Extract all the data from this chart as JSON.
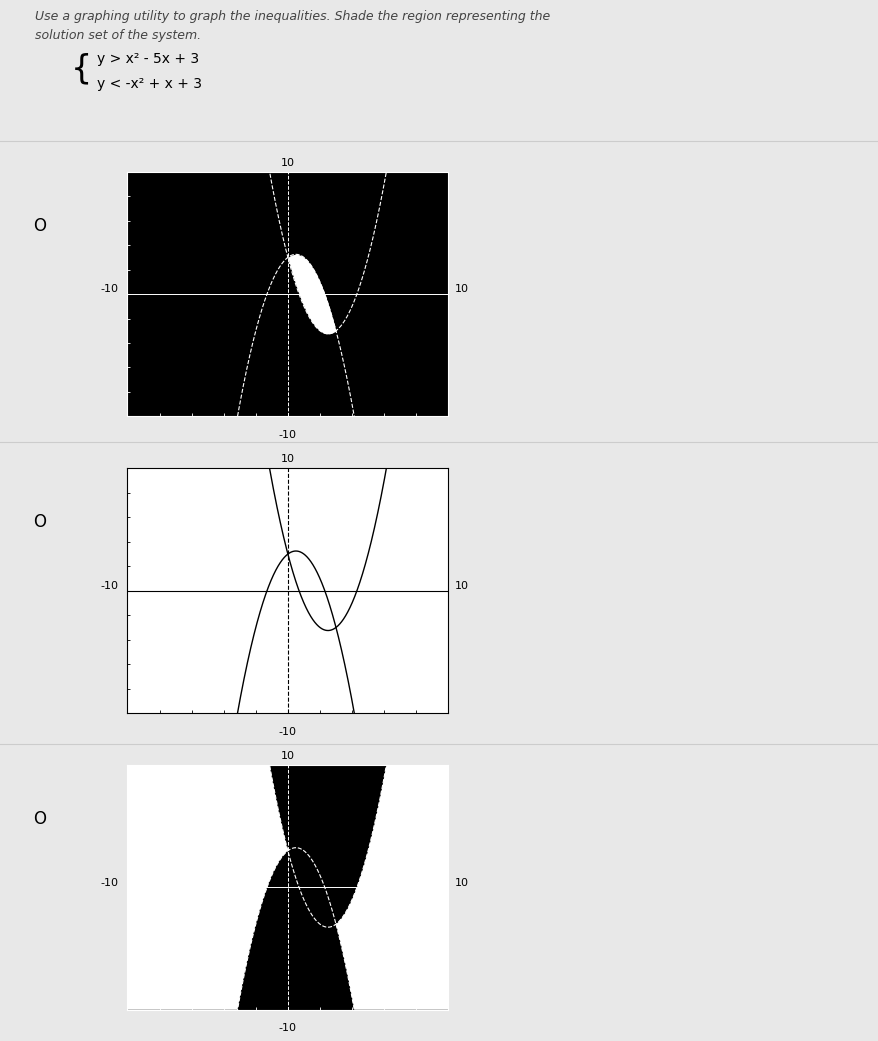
{
  "header_line1": "Use a graphing utility to graph the inequalities. Shade the region representing the",
  "header_line2": "solution set of the system.",
  "eq1": "y > x² - 5x + 3",
  "eq2": "y < -x² + x + 3",
  "xlim": [
    -10,
    10
  ],
  "ylim": [
    -10,
    10
  ],
  "fig_facecolor": "#e8e8e8",
  "black": "#000000",
  "white": "#ffffff",
  "gray_sep": "#cccccc",
  "radio": "O",
  "lbl_10": "10",
  "lbl_n10": "-10"
}
